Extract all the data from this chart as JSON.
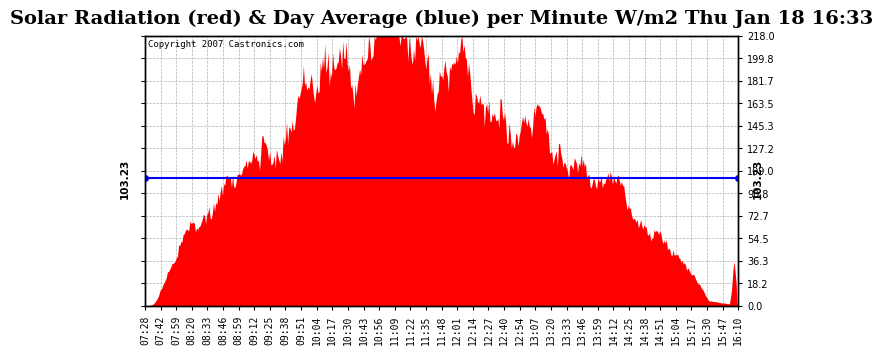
{
  "title": "Solar Radiation (red) & Day Average (blue) per Minute W/m2 Thu Jan 18 16:33",
  "copyright": "Copyright 2007 Castronics.com",
  "day_average": 103.23,
  "y_max": 218.0,
  "y_min": 0.0,
  "y_ticks_right": [
    0.0,
    18.2,
    36.3,
    54.5,
    72.7,
    90.8,
    109.0,
    127.2,
    145.3,
    163.5,
    181.7,
    199.8,
    218.0
  ],
  "bar_color": "#FF0000",
  "avg_line_color": "#0000FF",
  "grid_color": "#AAAAAA",
  "background_color": "#FFFFFF",
  "title_fontsize": 14,
  "tick_label_fontsize": 7,
  "x_tick_labels": [
    "07:28",
    "07:42",
    "07:59",
    "08:20",
    "08:33",
    "08:46",
    "08:59",
    "09:12",
    "09:25",
    "09:38",
    "09:51",
    "10:04",
    "10:17",
    "10:30",
    "10:43",
    "10:56",
    "11:09",
    "11:22",
    "11:35",
    "11:48",
    "12:01",
    "12:14",
    "12:27",
    "12:40",
    "12:54",
    "13:07",
    "13:20",
    "13:33",
    "13:46",
    "13:59",
    "14:12",
    "14:25",
    "14:38",
    "14:51",
    "15:04",
    "15:17",
    "15:30",
    "15:47",
    "16:10"
  ],
  "radiation_seed": 12345,
  "n_points": 529
}
